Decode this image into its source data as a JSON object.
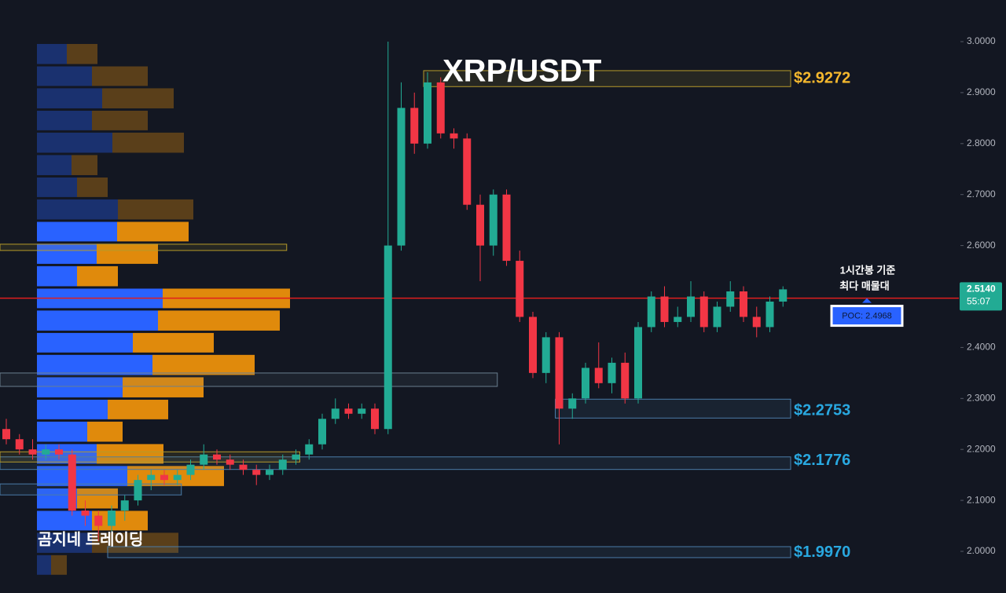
{
  "chart_data": {
    "type": "candlestick",
    "title": "XRP/USDT",
    "watermark": "곰지네 트레이딩",
    "annotation": [
      "1시간봉 기준",
      "최다 매물대"
    ],
    "ylim": [
      1.9183,
      3.0817
    ],
    "yticks": [
      {
        "value": 2.0,
        "label": "2.0000"
      },
      {
        "value": 2.1,
        "label": "2.1000"
      },
      {
        "value": 2.2,
        "label": "2.2000"
      },
      {
        "value": 2.3,
        "label": "2.3000"
      },
      {
        "value": 2.4,
        "label": "2.4000"
      },
      {
        "value": 2.5,
        "label": "2.5000"
      },
      {
        "value": 2.6,
        "label": "2.6000"
      },
      {
        "value": 2.7,
        "label": "2.7000"
      },
      {
        "value": 2.8,
        "label": "2.8000"
      },
      {
        "value": 2.9,
        "label": "2.9000"
      },
      {
        "value": 3.0,
        "label": "3.0000"
      }
    ],
    "grid": false,
    "up_color": "#22ab94",
    "down_color": "#f23645",
    "candles": [
      {
        "o": 2.24,
        "h": 2.26,
        "l": 2.21,
        "c": 2.22
      },
      {
        "o": 2.22,
        "h": 2.23,
        "l": 2.19,
        "c": 2.2
      },
      {
        "o": 2.2,
        "h": 2.22,
        "l": 2.18,
        "c": 2.19
      },
      {
        "o": 2.19,
        "h": 2.21,
        "l": 2.18,
        "c": 2.2
      },
      {
        "o": 2.2,
        "h": 2.21,
        "l": 2.18,
        "c": 2.19
      },
      {
        "o": 2.19,
        "h": 2.2,
        "l": 2.07,
        "c": 2.08
      },
      {
        "o": 2.08,
        "h": 2.1,
        "l": 2.05,
        "c": 2.07
      },
      {
        "o": 2.07,
        "h": 2.08,
        "l": 2.02,
        "c": 2.05
      },
      {
        "o": 2.05,
        "h": 2.09,
        "l": 2.03,
        "c": 2.08
      },
      {
        "o": 2.08,
        "h": 2.11,
        "l": 2.06,
        "c": 2.1
      },
      {
        "o": 2.1,
        "h": 2.15,
        "l": 2.09,
        "c": 2.14
      },
      {
        "o": 2.14,
        "h": 2.16,
        "l": 2.12,
        "c": 2.15
      },
      {
        "o": 2.15,
        "h": 2.16,
        "l": 2.13,
        "c": 2.14
      },
      {
        "o": 2.14,
        "h": 2.16,
        "l": 2.13,
        "c": 2.15
      },
      {
        "o": 2.15,
        "h": 2.18,
        "l": 2.14,
        "c": 2.17
      },
      {
        "o": 2.17,
        "h": 2.21,
        "l": 2.16,
        "c": 2.19
      },
      {
        "o": 2.19,
        "h": 2.2,
        "l": 2.17,
        "c": 2.18
      },
      {
        "o": 2.18,
        "h": 2.19,
        "l": 2.16,
        "c": 2.17
      },
      {
        "o": 2.17,
        "h": 2.18,
        "l": 2.15,
        "c": 2.16
      },
      {
        "o": 2.16,
        "h": 2.17,
        "l": 2.13,
        "c": 2.15
      },
      {
        "o": 2.15,
        "h": 2.17,
        "l": 2.14,
        "c": 2.16
      },
      {
        "o": 2.16,
        "h": 2.19,
        "l": 2.15,
        "c": 2.18
      },
      {
        "o": 2.18,
        "h": 2.2,
        "l": 2.17,
        "c": 2.19
      },
      {
        "o": 2.19,
        "h": 2.22,
        "l": 2.18,
        "c": 2.21
      },
      {
        "o": 2.21,
        "h": 2.27,
        "l": 2.2,
        "c": 2.26
      },
      {
        "o": 2.26,
        "h": 2.3,
        "l": 2.25,
        "c": 2.28
      },
      {
        "o": 2.28,
        "h": 2.29,
        "l": 2.26,
        "c": 2.27
      },
      {
        "o": 2.27,
        "h": 2.29,
        "l": 2.26,
        "c": 2.28
      },
      {
        "o": 2.28,
        "h": 2.29,
        "l": 2.23,
        "c": 2.24
      },
      {
        "o": 2.24,
        "h": 3.0,
        "l": 2.23,
        "c": 2.6
      },
      {
        "o": 2.6,
        "h": 2.92,
        "l": 2.59,
        "c": 2.87
      },
      {
        "o": 2.87,
        "h": 2.9,
        "l": 2.78,
        "c": 2.8
      },
      {
        "o": 2.8,
        "h": 2.94,
        "l": 2.79,
        "c": 2.92
      },
      {
        "o": 2.92,
        "h": 2.93,
        "l": 2.81,
        "c": 2.82
      },
      {
        "o": 2.82,
        "h": 2.83,
        "l": 2.79,
        "c": 2.81
      },
      {
        "o": 2.81,
        "h": 2.82,
        "l": 2.67,
        "c": 2.68
      },
      {
        "o": 2.68,
        "h": 2.7,
        "l": 2.53,
        "c": 2.6
      },
      {
        "o": 2.6,
        "h": 2.71,
        "l": 2.58,
        "c": 2.7
      },
      {
        "o": 2.7,
        "h": 2.71,
        "l": 2.56,
        "c": 2.57
      },
      {
        "o": 2.57,
        "h": 2.59,
        "l": 2.45,
        "c": 2.46
      },
      {
        "o": 2.46,
        "h": 2.47,
        "l": 2.34,
        "c": 2.35
      },
      {
        "o": 2.35,
        "h": 2.43,
        "l": 2.33,
        "c": 2.42
      },
      {
        "o": 2.42,
        "h": 2.43,
        "l": 2.21,
        "c": 2.28
      },
      {
        "o": 2.28,
        "h": 2.31,
        "l": 2.26,
        "c": 2.3
      },
      {
        "o": 2.3,
        "h": 2.37,
        "l": 2.29,
        "c": 2.36
      },
      {
        "o": 2.36,
        "h": 2.41,
        "l": 2.32,
        "c": 2.33
      },
      {
        "o": 2.33,
        "h": 2.38,
        "l": 2.31,
        "c": 2.37
      },
      {
        "o": 2.37,
        "h": 2.39,
        "l": 2.29,
        "c": 2.3
      },
      {
        "o": 2.3,
        "h": 2.45,
        "l": 2.29,
        "c": 2.44
      },
      {
        "o": 2.44,
        "h": 2.51,
        "l": 2.43,
        "c": 2.5
      },
      {
        "o": 2.5,
        "h": 2.52,
        "l": 2.44,
        "c": 2.45
      },
      {
        "o": 2.45,
        "h": 2.48,
        "l": 2.44,
        "c": 2.46
      },
      {
        "o": 2.46,
        "h": 2.53,
        "l": 2.45,
        "c": 2.5
      },
      {
        "o": 2.5,
        "h": 2.51,
        "l": 2.43,
        "c": 2.44
      },
      {
        "o": 2.44,
        "h": 2.49,
        "l": 2.43,
        "c": 2.48
      },
      {
        "o": 2.48,
        "h": 2.53,
        "l": 2.47,
        "c": 2.51
      },
      {
        "o": 2.51,
        "h": 2.52,
        "l": 2.45,
        "c": 2.46
      },
      {
        "o": 2.46,
        "h": 2.48,
        "l": 2.42,
        "c": 2.44
      },
      {
        "o": 2.44,
        "h": 2.5,
        "l": 2.43,
        "c": 2.49
      },
      {
        "o": 2.49,
        "h": 2.52,
        "l": 2.48,
        "c": 2.514
      }
    ],
    "last_price": {
      "value": 2.514,
      "label": "2.5140"
    },
    "countdown": "55:07",
    "poc": {
      "value": 2.4968,
      "label": "POC: 2.4968"
    },
    "poc_color": "#e01e1e",
    "volume_profile": {
      "price_bins": [
        2.997,
        2.953,
        2.91,
        2.866,
        2.823,
        2.779,
        2.735,
        2.692,
        2.648,
        2.605,
        2.561,
        2.517,
        2.474,
        2.43,
        2.387,
        2.343,
        2.299,
        2.256,
        2.212,
        2.169,
        2.125,
        2.081,
        2.038,
        1.994,
        1.951
      ],
      "buy": [
        38,
        70,
        83,
        70,
        96,
        44,
        51,
        103,
        102,
        76,
        51,
        160,
        154,
        122,
        147,
        109,
        90,
        64,
        76,
        115,
        51,
        70,
        70,
        18
      ],
      "sell": [
        39,
        71,
        91,
        71,
        91,
        33,
        39,
        96,
        91,
        78,
        52,
        162,
        155,
        103,
        130,
        103,
        77,
        45,
        85,
        123,
        52,
        71,
        110,
        20
      ],
      "buy_color": "#2962ff",
      "sell_color": "#e08a0c",
      "value_area": [
        2.038,
        2.648
      ]
    },
    "zones": [
      {
        "high": 2.9431,
        "low": 2.9118,
        "start": 32,
        "end": 59,
        "color": "#b59a2a"
      },
      {
        "high": 2.2985,
        "low": 2.2615,
        "start": 42,
        "end": 59,
        "color": "#4a7ca8"
      },
      {
        "high": 2.1853,
        "low": 2.1607,
        "start": 0,
        "end": 59,
        "color": "#4a7ca8"
      },
      {
        "high": 2.0092,
        "low": 1.9877,
        "start": 8,
        "end": 59,
        "color": "#4a7ca8"
      },
      {
        "high": 2.6026,
        "low": 2.5903,
        "start": 0,
        "end": 21,
        "color": "#b59a2a"
      },
      {
        "high": 2.3499,
        "low": 2.3236,
        "start": 0,
        "end": 37,
        "color": "#6a7f8f"
      },
      {
        "high": 2.1323,
        "low": 2.1107,
        "start": 0,
        "end": 13,
        "color": "#4a7ca8"
      },
      {
        "high": 2.1953,
        "low": 2.1753,
        "start": 0,
        "end": 22,
        "color": "#b59a2a"
      }
    ],
    "price_labels": [
      {
        "value": 2.9272,
        "label": "$2.9272",
        "color": "#f5b82e"
      },
      {
        "value": 2.2753,
        "label": "$2.2753",
        "color": "#29a8e0"
      },
      {
        "value": 2.1776,
        "label": "$2.1776",
        "color": "#29a8e0"
      },
      {
        "value": 1.997,
        "label": "$1.9970",
        "color": "#29a8e0"
      }
    ]
  }
}
